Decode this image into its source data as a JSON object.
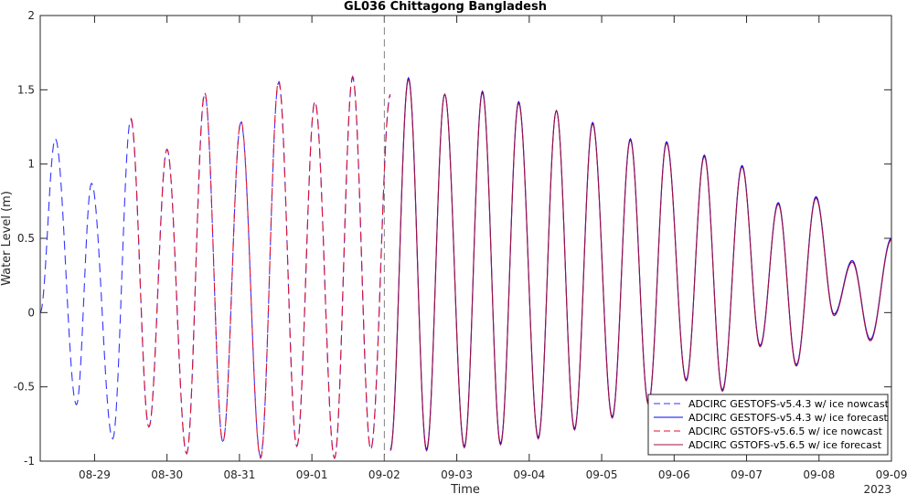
{
  "chart_data": {
    "type": "line",
    "title": "GL036 Chittagong Bangladesh",
    "xlabel": "Time",
    "ylabel": "Water Level (m)",
    "ylim": [
      -1,
      2
    ],
    "yticks": [
      "-1",
      "-0.5",
      "0",
      "0.5",
      "1",
      "1.5",
      "2"
    ],
    "xlim": [
      "2023-08-28T06:00",
      "2023-09-09T00:00"
    ],
    "xticks": [
      "08-29",
      "08-30",
      "08-31",
      "09-01",
      "09-02",
      "09-03",
      "09-04",
      "09-05",
      "09-06",
      "09-07",
      "09-08",
      "09-09"
    ],
    "year_label": "2023",
    "nowcast_end": "2023-09-02T00:00",
    "legend_position": "bottom-right",
    "extrema_x": [
      "2023-08-28T06:00",
      "2023-08-28T11:00",
      "2023-08-28T18:00",
      "2023-08-28T23:00",
      "2023-08-29T06:00",
      "2023-08-29T12:00",
      "2023-08-29T18:00",
      "2023-08-30T00:00",
      "2023-08-30T06:30",
      "2023-08-30T12:30",
      "2023-08-30T18:30",
      "2023-08-31T00:30",
      "2023-08-31T07:00",
      "2023-08-31T13:00",
      "2023-08-31T19:00",
      "2023-09-01T01:00",
      "2023-09-01T07:30",
      "2023-09-01T13:30",
      "2023-09-01T19:30",
      "2023-09-02T02:00",
      "2023-09-02T08:00",
      "2023-09-02T14:00",
      "2023-09-02T20:00",
      "2023-09-03T02:30",
      "2023-09-03T08:30",
      "2023-09-03T14:30",
      "2023-09-03T20:30",
      "2023-09-04T03:00",
      "2023-09-04T09:00",
      "2023-09-04T15:00",
      "2023-09-04T21:00",
      "2023-09-05T03:30",
      "2023-09-05T09:30",
      "2023-09-05T15:30",
      "2023-09-05T21:30",
      "2023-09-06T04:00",
      "2023-09-06T10:00",
      "2023-09-06T16:00",
      "2023-09-06T22:30",
      "2023-09-07T04:30",
      "2023-09-07T10:30",
      "2023-09-07T16:30",
      "2023-09-07T23:00",
      "2023-09-08T05:00",
      "2023-09-08T11:00",
      "2023-09-08T17:00",
      "2023-09-09T00:00"
    ],
    "series": [
      {
        "name": "ADCIRC GESTOFS-v5.4.3 w/ ice nowcast",
        "color": "#3333ff",
        "dash": "dashed",
        "start": "2023-08-28T06:00",
        "end": "2023-09-02T00:00",
        "values": [
          0.0,
          1.17,
          -0.62,
          0.87,
          -0.85,
          1.3,
          -0.77,
          1.1,
          -0.95,
          1.47,
          -0.87,
          1.28,
          -0.97,
          1.55,
          -0.9,
          1.42,
          -0.98,
          1.58,
          -0.92,
          1.46,
          null,
          null,
          null,
          null,
          null,
          null,
          null,
          null,
          null,
          null,
          null,
          null,
          null,
          null,
          null,
          null,
          null,
          null,
          null,
          null,
          null,
          null,
          null,
          null,
          null,
          null,
          null
        ]
      },
      {
        "name": "ADCIRC GESTOFS-v5.4.3 w/ ice forecast",
        "color": "#0000ff",
        "dash": "solid",
        "start": "2023-09-02T00:00",
        "end": "2023-09-09T00:00",
        "values": [
          null,
          null,
          null,
          null,
          null,
          null,
          null,
          null,
          null,
          null,
          null,
          null,
          null,
          null,
          null,
          null,
          null,
          null,
          null,
          -0.92,
          1.58,
          -0.92,
          1.47,
          -0.9,
          1.49,
          -0.88,
          1.42,
          -0.84,
          1.36,
          -0.78,
          1.28,
          -0.7,
          1.17,
          -0.61,
          1.15,
          -0.45,
          1.06,
          -0.52,
          0.99,
          -0.22,
          0.74,
          -0.35,
          0.78,
          -0.01,
          0.35,
          -0.18,
          0.5
        ]
      },
      {
        "name": "ADCIRC GSTOFS-v5.6.5 w/ ice nowcast",
        "color": "#dd1133",
        "dash": "dashed",
        "start": "2023-08-28T06:00",
        "end": "2023-09-02T00:00",
        "values": [
          null,
          null,
          null,
          null,
          null,
          1.31,
          -0.77,
          1.1,
          -0.95,
          1.48,
          -0.87,
          1.29,
          -0.98,
          1.56,
          -0.9,
          1.42,
          -0.98,
          1.59,
          -0.92,
          1.47,
          null,
          null,
          null,
          null,
          null,
          null,
          null,
          null,
          null,
          null,
          null,
          null,
          null,
          null,
          null,
          null,
          null,
          null,
          null,
          null,
          null,
          null,
          null,
          null,
          null,
          null,
          null
        ]
      },
      {
        "name": "ADCIRC GSTOFS-v5.6.5 w/ ice forecast",
        "color": "#a0103e",
        "dash": "solid",
        "start": "2023-09-02T00:00",
        "end": "2023-09-09T00:00",
        "values": [
          null,
          null,
          null,
          null,
          null,
          null,
          null,
          null,
          null,
          null,
          null,
          null,
          null,
          null,
          null,
          null,
          null,
          null,
          null,
          -0.93,
          1.57,
          -0.93,
          1.47,
          -0.91,
          1.48,
          -0.89,
          1.41,
          -0.85,
          1.36,
          -0.79,
          1.27,
          -0.71,
          1.16,
          -0.62,
          1.14,
          -0.46,
          1.05,
          -0.53,
          0.98,
          -0.23,
          0.73,
          -0.36,
          0.77,
          -0.02,
          0.34,
          -0.19,
          0.49
        ]
      }
    ]
  }
}
